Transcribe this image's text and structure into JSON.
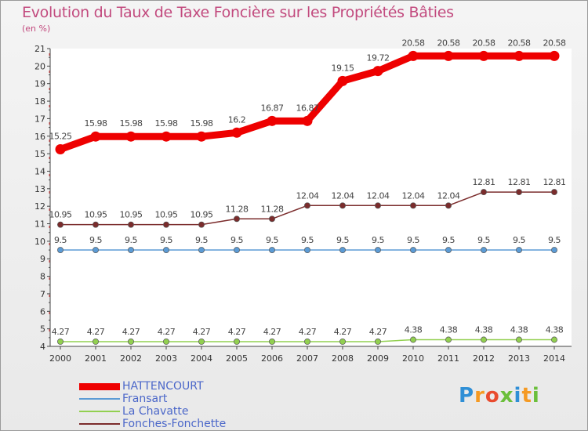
{
  "title": "Evolution du Taux de Taxe Foncière sur les Propriétés Bâties",
  "unit_label": "(en %)",
  "logo": {
    "text": "Proxiti",
    "letters": [
      "P",
      "r",
      "o",
      "x",
      "i",
      "t",
      "i"
    ],
    "colors": [
      "#2f8fd6",
      "#f59a23",
      "#e94b2e",
      "#6bbf3b",
      "#2f8fd6",
      "#f59a23",
      "#6bbf3b"
    ]
  },
  "chart_data": {
    "type": "line",
    "title": "Evolution du Taux de Taxe Foncière sur les Propriétés Bâties",
    "ylabel": "(en %)",
    "xlabel": "",
    "ylim": [
      4,
      21
    ],
    "yticks": [
      4,
      5,
      6,
      7,
      8,
      9,
      10,
      11,
      12,
      13,
      14,
      15,
      16,
      17,
      18,
      19,
      20,
      21
    ],
    "x": [
      "2000",
      "2001",
      "2002",
      "2003",
      "2004",
      "2005",
      "2006",
      "2007",
      "2008",
      "2009",
      "2010",
      "2011",
      "2012",
      "2013",
      "2014"
    ],
    "series": [
      {
        "name": "HATTENCOURT",
        "color": "#ee0000",
        "width": 9,
        "values": [
          15.25,
          15.98,
          15.98,
          15.98,
          15.98,
          16.2,
          16.87,
          16.87,
          19.15,
          19.72,
          20.58,
          20.58,
          20.58,
          20.58,
          20.58
        ],
        "labels": [
          "15.25",
          "15.98",
          "15.98",
          "15.98",
          "15.98",
          "16.2",
          "16.87",
          "16.87",
          "19.15",
          "19.72",
          "20.58",
          "20.58",
          "20.58",
          "20.58",
          "20.58"
        ]
      },
      {
        "name": "Fransart",
        "color": "#5b9bd5",
        "width": 1.5,
        "values": [
          9.5,
          9.5,
          9.5,
          9.5,
          9.5,
          9.5,
          9.5,
          9.5,
          9.5,
          9.5,
          9.5,
          9.5,
          9.5,
          9.5,
          9.5
        ],
        "labels": [
          "9.5",
          "9.5",
          "9.5",
          "9.5",
          "9.5",
          "9.5",
          "9.5",
          "9.5",
          "9.5",
          "9.5",
          "9.5",
          "9.5",
          "9.5",
          "9.5",
          "9.5"
        ]
      },
      {
        "name": "La Chavatte",
        "color": "#92d050",
        "width": 1.5,
        "values": [
          4.27,
          4.27,
          4.27,
          4.27,
          4.27,
          4.27,
          4.27,
          4.27,
          4.27,
          4.27,
          4.38,
          4.38,
          4.38,
          4.38,
          4.38
        ],
        "labels": [
          "4.27",
          "4.27",
          "4.27",
          "4.27",
          "4.27",
          "4.27",
          "4.27",
          "4.27",
          "4.27",
          "4.27",
          "4.38",
          "4.38",
          "4.38",
          "4.38",
          "4.38"
        ]
      },
      {
        "name": "Fonches-Fonchette",
        "color": "#7b2c2c",
        "width": 1.5,
        "values": [
          10.95,
          10.95,
          10.95,
          10.95,
          10.95,
          11.28,
          11.28,
          12.04,
          12.04,
          12.04,
          12.04,
          12.04,
          12.81,
          12.81,
          12.81
        ],
        "labels": [
          "10.95",
          "10.95",
          "10.95",
          "10.95",
          "10.95",
          "11.28",
          "11.28",
          "12.04",
          "12.04",
          "12.04",
          "12.04",
          "12.04",
          "12.81",
          "12.81",
          "12.81"
        ]
      }
    ],
    "legend_position": "bottom-left"
  }
}
